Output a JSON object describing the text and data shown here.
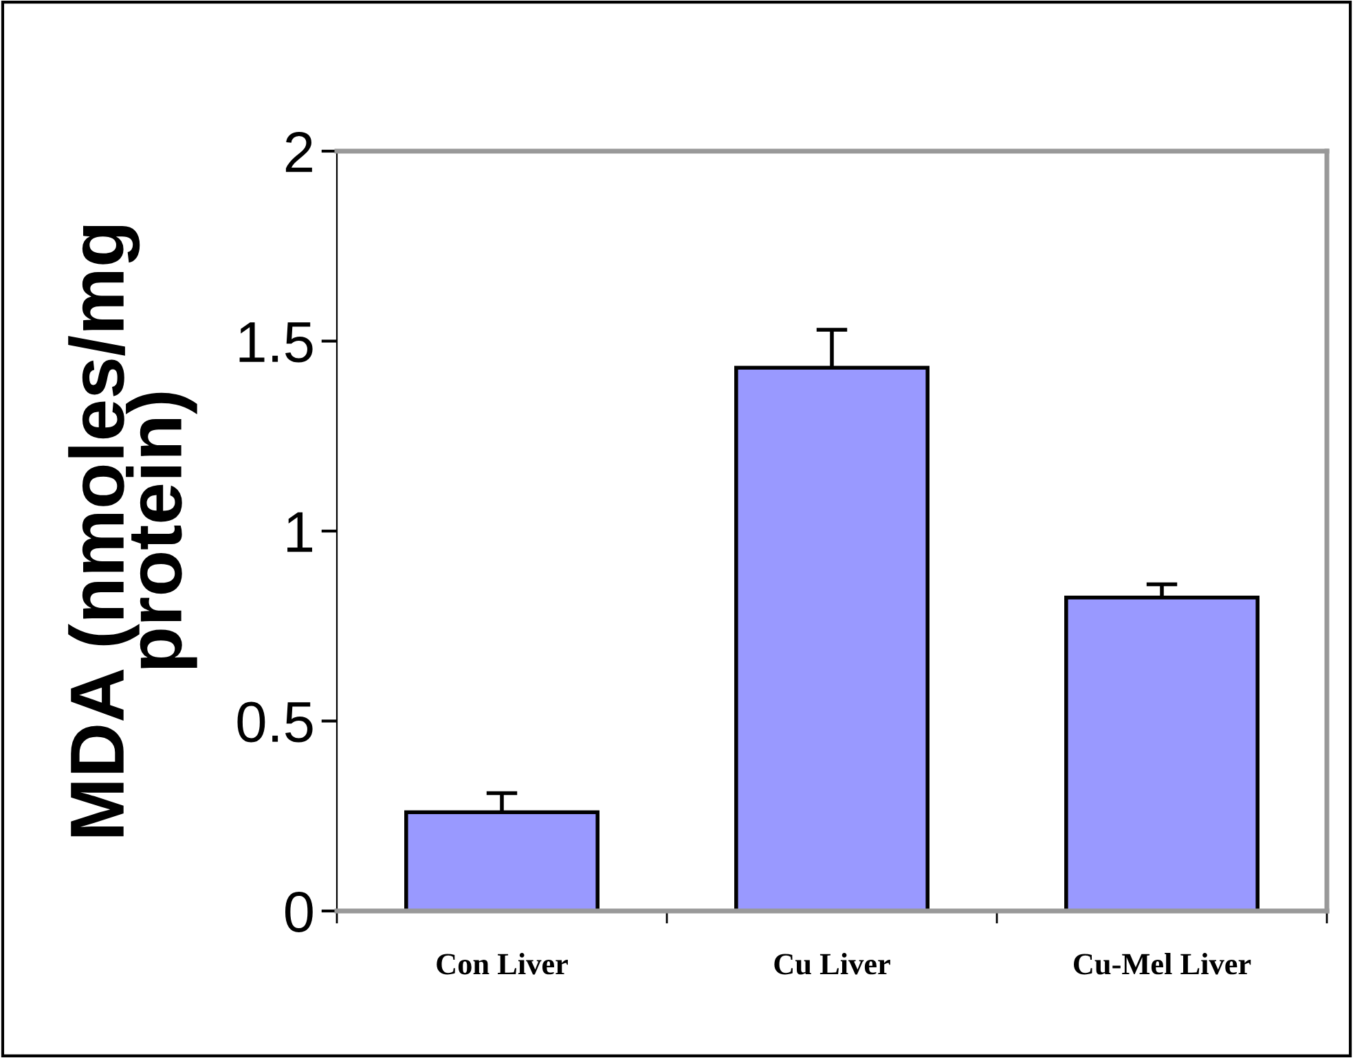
{
  "chart_data": {
    "type": "bar",
    "ylabel": "MDA (nmoles/mg\nprotein)",
    "categories": [
      "Con Liver",
      "Cu Liver",
      "Cu-Mel Liver"
    ],
    "values": [
      0.26,
      1.43,
      0.825
    ],
    "errors": [
      0.05,
      0.1,
      0.035
    ],
    "color": "#9999ff",
    "ylim": [
      0,
      2
    ],
    "yticks": [
      0,
      0.5,
      1,
      1.5,
      2
    ],
    "grid": false
  }
}
